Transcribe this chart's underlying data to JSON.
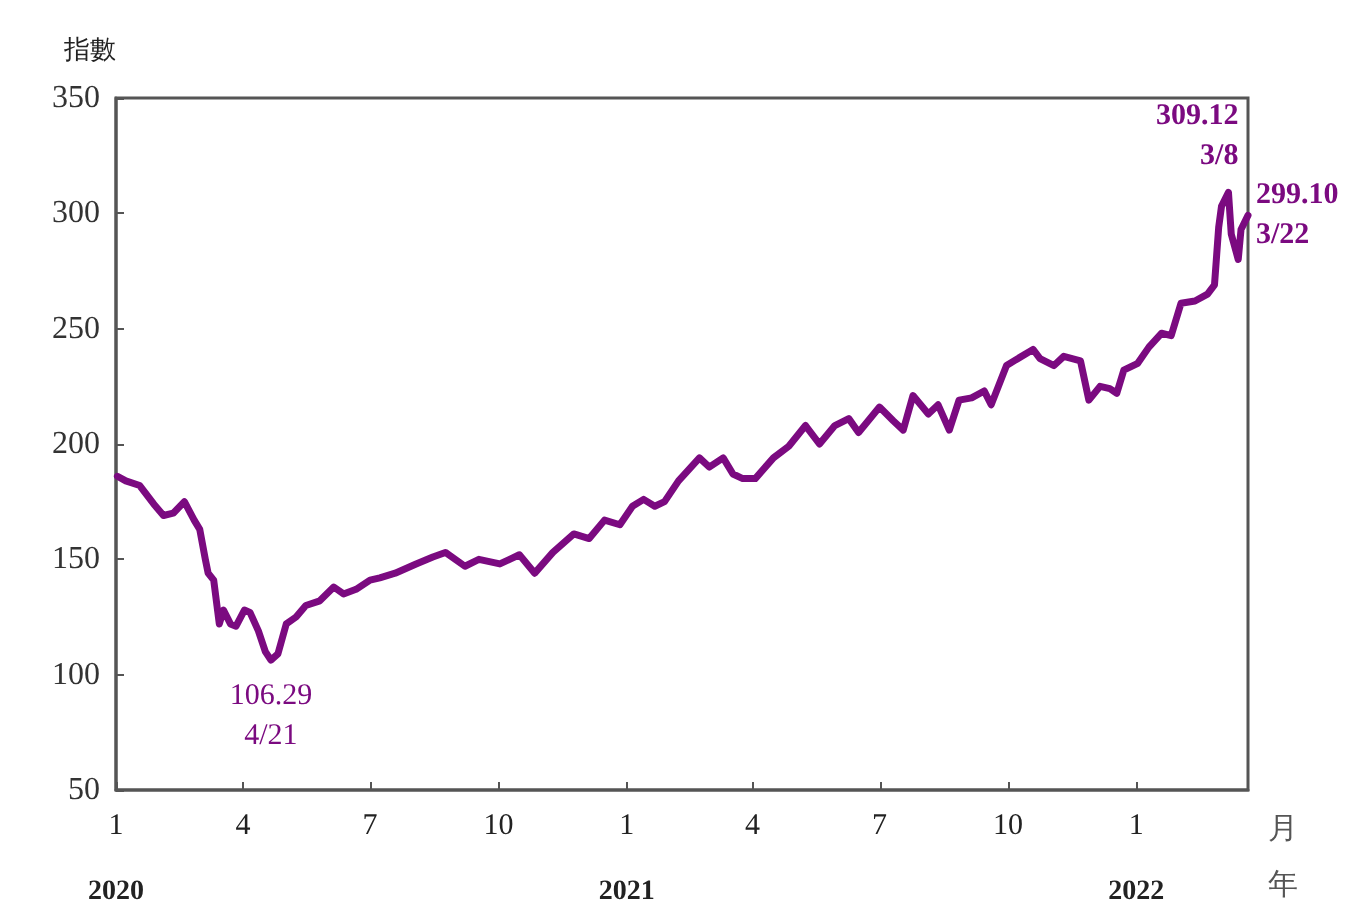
{
  "chart_data": {
    "type": "line",
    "ylabel": "指數",
    "xlabel": "月年",
    "x": [
      "2020-01-02",
      "2020-01-08",
      "2020-01-18",
      "2020-01-28",
      "2020-02-04",
      "2020-02-11",
      "2020-02-19",
      "2020-02-26",
      "2020-03-01",
      "2020-03-05",
      "2020-03-07",
      "2020-03-11",
      "2020-03-15",
      "2020-03-18",
      "2020-03-23",
      "2020-03-27",
      "2020-04-02",
      "2020-04-06",
      "2020-04-12",
      "2020-04-17",
      "2020-04-21",
      "2020-04-26",
      "2020-05-02",
      "2020-05-09",
      "2020-05-16",
      "2020-05-26",
      "2020-06-05",
      "2020-06-12",
      "2020-06-21",
      "2020-07-01",
      "2020-07-08",
      "2020-07-19",
      "2020-08-03",
      "2020-08-15",
      "2020-08-24",
      "2020-09-07",
      "2020-09-17",
      "2020-10-02",
      "2020-10-09",
      "2020-10-16",
      "2020-10-27",
      "2020-11-09",
      "2020-11-24",
      "2020-12-05",
      "2020-12-16",
      "2020-12-27",
      "2021-01-05",
      "2021-01-13",
      "2021-01-21",
      "2021-01-28",
      "2021-02-07",
      "2021-02-22",
      "2021-03-01",
      "2021-03-11",
      "2021-03-18",
      "2021-03-25",
      "2021-04-03",
      "2021-04-16",
      "2021-04-27",
      "2021-05-09",
      "2021-05-19",
      "2021-05-30",
      "2021-06-09",
      "2021-06-16",
      "2021-07-01",
      "2021-07-11",
      "2021-07-18",
      "2021-07-25",
      "2021-08-05",
      "2021-08-12",
      "2021-08-20",
      "2021-08-27",
      "2021-09-05",
      "2021-09-14",
      "2021-09-19",
      "2021-09-30",
      "2021-10-08",
      "2021-10-19",
      "2021-10-24",
      "2021-11-03",
      "2021-11-10",
      "2021-11-22",
      "2021-11-28",
      "2021-12-06",
      "2021-12-13",
      "2021-12-18",
      "2021-12-23",
      "2022-01-02",
      "2022-01-10",
      "2022-01-19",
      "2022-01-26",
      "2022-02-02",
      "2022-02-12",
      "2022-02-21",
      "2022-02-26",
      "2022-03-01",
      "2022-03-03",
      "2022-03-08",
      "2022-03-10",
      "2022-03-15",
      "2022-03-17",
      "2022-03-22"
    ],
    "series": [
      {
        "color": "#7b0a80",
        "values": [
          186,
          184,
          182,
          174,
          169,
          170,
          175,
          167,
          163,
          150,
          144,
          141,
          122,
          128,
          122,
          121,
          128,
          127,
          119,
          110,
          106.29,
          109,
          122,
          125,
          130,
          132,
          138,
          135,
          137,
          141,
          142,
          144,
          148,
          151,
          153,
          147,
          150,
          148,
          150,
          152,
          144,
          153,
          161,
          159,
          167,
          165,
          173,
          176,
          173,
          175,
          184,
          194,
          190,
          194,
          187,
          185,
          185,
          194,
          199,
          208,
          200,
          208,
          211,
          205,
          216,
          210,
          206,
          221,
          213,
          217,
          206,
          219,
          220,
          223,
          217,
          234,
          237,
          241,
          237,
          234,
          238,
          236,
          219,
          225,
          224,
          222,
          232,
          235,
          242,
          248,
          247,
          261,
          262,
          265,
          269,
          294,
          303,
          309.12,
          291,
          280,
          293,
          299.1
        ]
      }
    ],
    "xlim": [
      "2020-01-01",
      "2022-03-22"
    ],
    "xticks": [
      {
        "value": "2020-01-01",
        "label": "1\n2020"
      },
      {
        "value": "2020-04-01",
        "label": "4"
      },
      {
        "value": "2020-07-01",
        "label": "7"
      },
      {
        "value": "2020-10-01",
        "label": "10"
      },
      {
        "value": "2021-01-01",
        "label": "1\n2021"
      },
      {
        "value": "2021-04-01",
        "label": "4"
      },
      {
        "value": "2021-07-01",
        "label": "7"
      },
      {
        "value": "2021-10-01",
        "label": "10"
      },
      {
        "value": "2022-01-01",
        "label": "1\n2022"
      }
    ],
    "ylim": [
      50,
      350
    ],
    "yticks": [
      50,
      100,
      150,
      200,
      250,
      300,
      350
    ],
    "grid": false,
    "marker": "none",
    "line_style": "solid",
    "annotations": [
      {
        "text": "106.29\n4/21",
        "x": "2020-04-21",
        "y": 106.29
      },
      {
        "text": "309.12\n3/8",
        "x": "2022-03-08",
        "y": 309.12
      },
      {
        "text": "299.10\n3/22",
        "x": "2022-03-22",
        "y": 299.1
      }
    ]
  }
}
